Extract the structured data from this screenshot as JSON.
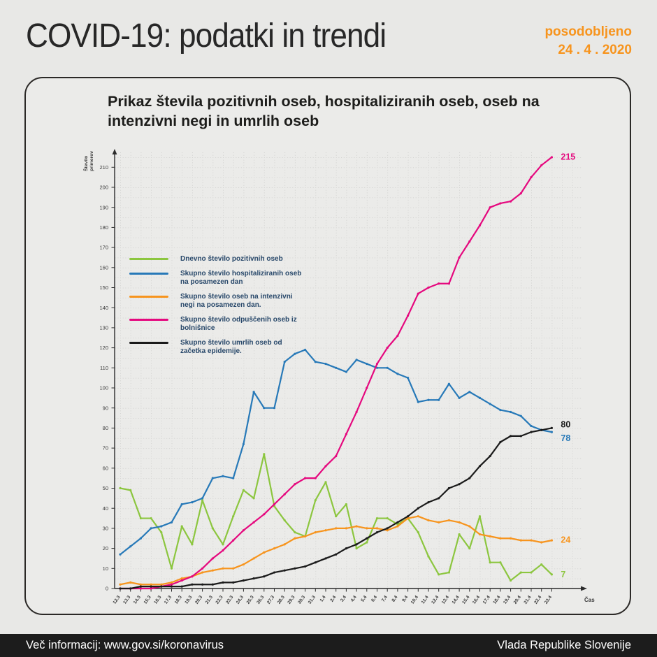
{
  "header": {
    "title": "COVID-19: podatki in trendi",
    "updated_line1": "posodobljeno",
    "updated_line2": "24 . 4 . 2020",
    "accent_color": "#f7941d"
  },
  "card": {
    "title": "Prikaz števila pozitivnih oseb, hospitaliziranih oseb, oseb na intenzivni negi in umrlih oseb"
  },
  "chart_data": {
    "type": "line",
    "title": "Prikaz števila pozitivnih oseb, hospitaliziranih oseb, oseb na intenzivni negi in umrlih oseb",
    "xlabel": "Čas",
    "ylabel": "Število primerov",
    "ylim": [
      0,
      215
    ],
    "ytick_step": 10,
    "grid": "dotted",
    "legend_position": "upper-left-inside",
    "categories": [
      "12.3",
      "13.3",
      "14.3",
      "15.3",
      "16.3",
      "17.3",
      "18.3",
      "19.3",
      "20.3",
      "21.3",
      "22.3",
      "23.3",
      "24.3",
      "25.3",
      "26.3",
      "27.3",
      "28.3",
      "29.3",
      "30.3",
      "31.3",
      "1.4",
      "2.4",
      "3.4",
      "4.4",
      "5.4",
      "6.4",
      "7.4",
      "8.4",
      "9.4",
      "10.4",
      "11.4",
      "12.4",
      "13.4",
      "14.4",
      "15.4",
      "16.4",
      "17.4",
      "18.4",
      "19.4",
      "20.4",
      "21.4",
      "22.4",
      "23.4"
    ],
    "series": [
      {
        "name": "Dnevno število pozitivnih oseb",
        "color": "#8cc63f",
        "end_label": "7",
        "values": [
          50,
          49,
          35,
          35,
          28,
          10,
          31,
          22,
          44,
          30,
          22,
          36,
          49,
          45,
          67,
          41,
          34,
          28,
          26,
          44,
          53,
          36,
          42,
          20,
          23,
          35,
          35,
          32,
          35,
          28,
          16,
          7,
          8,
          27,
          20,
          36,
          13,
          13,
          4,
          8,
          8,
          12,
          7
        ]
      },
      {
        "name": "Skupno število hospitaliziranih oseb na posamezen dan",
        "color": "#2779b8",
        "end_label": "78",
        "values": [
          17,
          21,
          25,
          30,
          31,
          33,
          42,
          43,
          45,
          55,
          56,
          55,
          72,
          98,
          90,
          90,
          113,
          117,
          119,
          113,
          112,
          110,
          108,
          114,
          112,
          110,
          110,
          107,
          105,
          93,
          94,
          94,
          102,
          95,
          98,
          95,
          92,
          89,
          88,
          86,
          81,
          79,
          78
        ]
      },
      {
        "name": "Skupno število oseb na intenzivni negi na posamezen dan.",
        "color": "#f7941d",
        "end_label": "24",
        "values": [
          2,
          3,
          2,
          2,
          2,
          3,
          5,
          6,
          8,
          9,
          10,
          10,
          12,
          15,
          18,
          20,
          22,
          25,
          26,
          28,
          29,
          30,
          30,
          31,
          30,
          30,
          29,
          31,
          35,
          36,
          34,
          33,
          34,
          33,
          31,
          27,
          26,
          25,
          25,
          24,
          24,
          23,
          24
        ]
      },
      {
        "name": "Skupno število odpuščenih oseb iz bolnišnice",
        "color": "#e5087e",
        "end_label": "215",
        "values": [
          0,
          0,
          0,
          0,
          1,
          2,
          4,
          6,
          10,
          15,
          19,
          24,
          29,
          33,
          37,
          42,
          47,
          52,
          55,
          55,
          61,
          66,
          77,
          88,
          100,
          112,
          120,
          126,
          136,
          147,
          150,
          152,
          152,
          165,
          173,
          181,
          190,
          192,
          193,
          197,
          205,
          211,
          215
        ]
      },
      {
        "name": "Skupno število umrlih oseb od začetka epidemije.",
        "color": "#1a1a1a",
        "end_label": "80",
        "values": [
          0,
          0,
          1,
          1,
          1,
          1,
          1,
          2,
          2,
          2,
          3,
          3,
          4,
          5,
          6,
          8,
          9,
          10,
          11,
          13,
          15,
          17,
          20,
          22,
          25,
          28,
          30,
          33,
          36,
          40,
          43,
          45,
          50,
          52,
          55,
          61,
          66,
          73,
          76,
          76,
          78,
          79,
          80
        ]
      }
    ]
  },
  "footer": {
    "left": "Več informacij: www.gov.si/koronavirus",
    "right": "Vlada Republike Slovenije"
  }
}
